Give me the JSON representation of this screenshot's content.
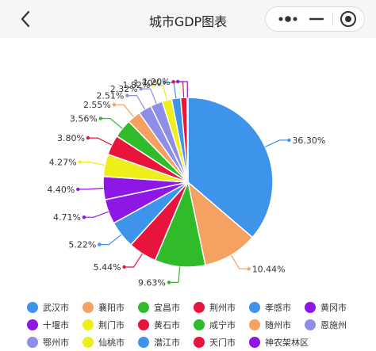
{
  "header": {
    "title": "城市GDP图表"
  },
  "chart_data": {
    "type": "pie",
    "title": "",
    "categories": [
      "武汉市",
      "襄阳市",
      "宜昌市",
      "荆州市",
      "孝感市",
      "黄冈市",
      "十堰市",
      "荆门市",
      "黄石市",
      "咸宁市",
      "随州市",
      "恩施州",
      "鄂州市",
      "仙桃市",
      "潜江市",
      "天门市",
      "神农架林区"
    ],
    "values": [
      36.3,
      10.44,
      9.63,
      5.44,
      5.22,
      4.71,
      4.4,
      4.27,
      3.8,
      3.56,
      2.55,
      2.51,
      2.32,
      1.82,
      1.7,
      1.2,
      0.2
    ],
    "labels": [
      "36.30%",
      "10.44%",
      "9.63%",
      "5.44%",
      "5.22%",
      "4.71%",
      "4.40%",
      "4.27%",
      "3.80%",
      "3.56%",
      "2.55%",
      "2.51%",
      "2.32%",
      "1.82%",
      "1.70%",
      "1.20%",
      ""
    ],
    "colors": [
      "#3e94ea",
      "#f4a161",
      "#2fbb2a",
      "#e8143c",
      "#3e94ea",
      "#8f17e6",
      "#8f17e6",
      "#eeee1a",
      "#e8143c",
      "#2fbb2a",
      "#f4a161",
      "#8e8ee8",
      "#8e8ee8",
      "#eeee1a",
      "#3e94ea",
      "#e8143c",
      "#8f17e6"
    ],
    "legend_position": "bottom"
  },
  "navbar_icons": {
    "back": "chevron-left-icon",
    "more": "more-dots-icon",
    "minimize": "minimize-icon",
    "close": "target-close-icon"
  }
}
